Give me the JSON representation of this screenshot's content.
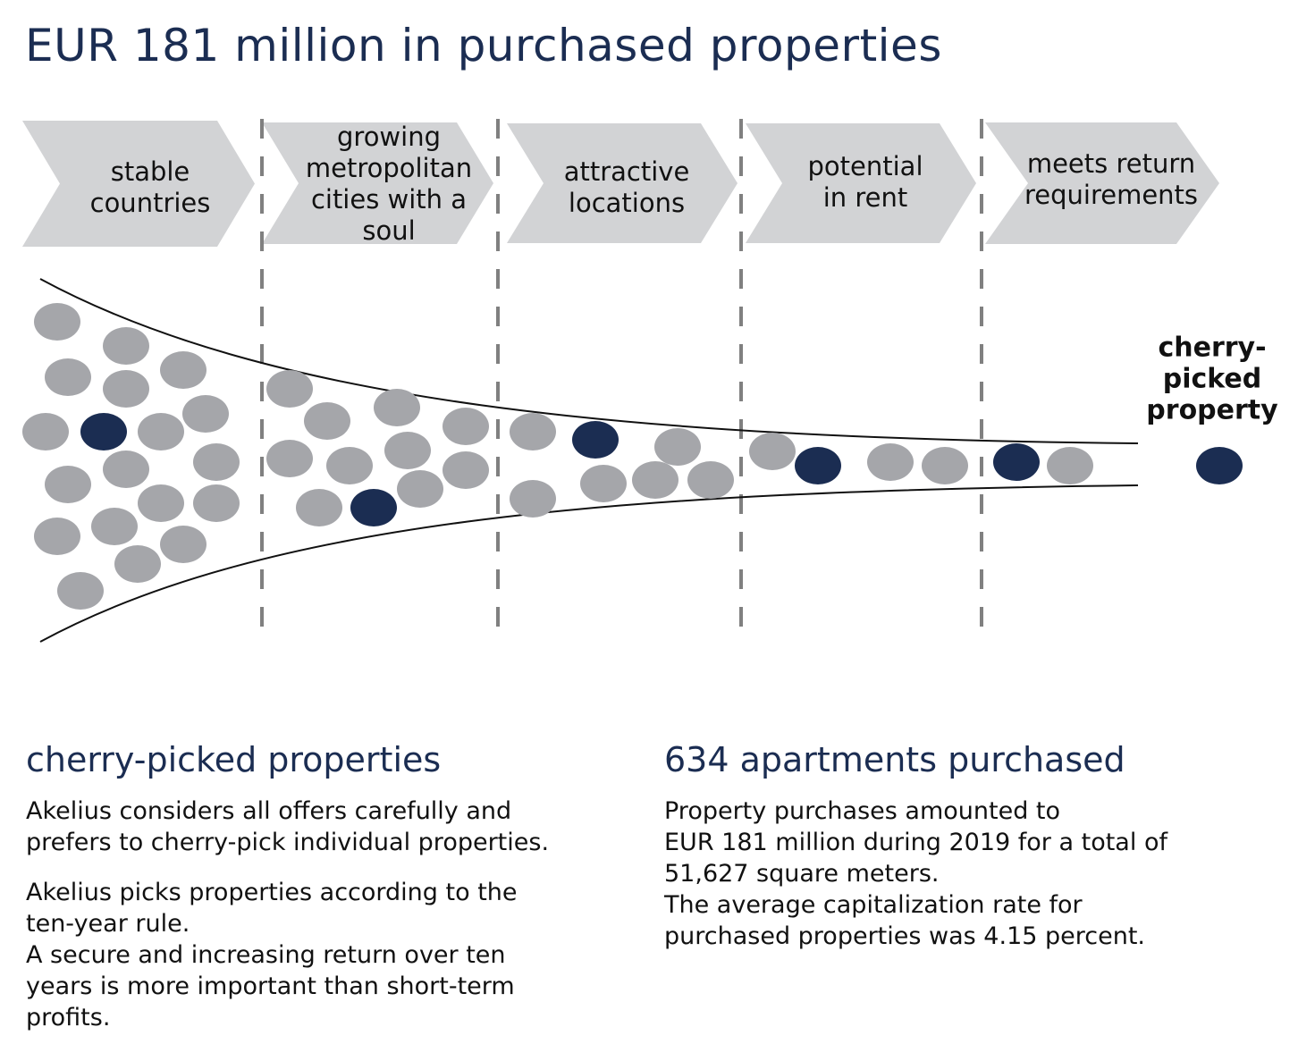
{
  "title": "EUR 181 million in purchased properties",
  "colors": {
    "navy": "#1b2d52",
    "grey_dot": "#a5a6aa",
    "chevron": "#d2d3d5",
    "divider": "#808080"
  },
  "steps": [
    {
      "lines": [
        "stable",
        "countries"
      ]
    },
    {
      "lines": [
        "growing",
        "metropolitan",
        "cities with a",
        "soul"
      ]
    },
    {
      "lines": [
        "attractive",
        "locations"
      ]
    },
    {
      "lines": [
        "potential",
        "in rent"
      ]
    },
    {
      "lines": [
        "meets return",
        "requirements"
      ]
    }
  ],
  "end_label": {
    "lines": [
      "cherry-",
      "picked",
      "property"
    ]
  },
  "left_column": {
    "heading": "cherry-picked properties",
    "paragraph1": [
      "Akelius considers all offers carefully and",
      "prefers to cherry-pick individual properties."
    ],
    "paragraph2": [
      "Akelius picks properties according to the",
      "ten-year rule.",
      "A secure and increasing return over ten",
      "years is more important than short-term",
      "profits."
    ]
  },
  "right_column": {
    "heading": "634 apartments purchased",
    "paragraph": [
      "Property purchases amounted to",
      "EUR 181 million during 2019 for a total of",
      "51,627 square meters.",
      "The average capitalization rate for",
      "purchased properties was 4.15 percent."
    ]
  }
}
